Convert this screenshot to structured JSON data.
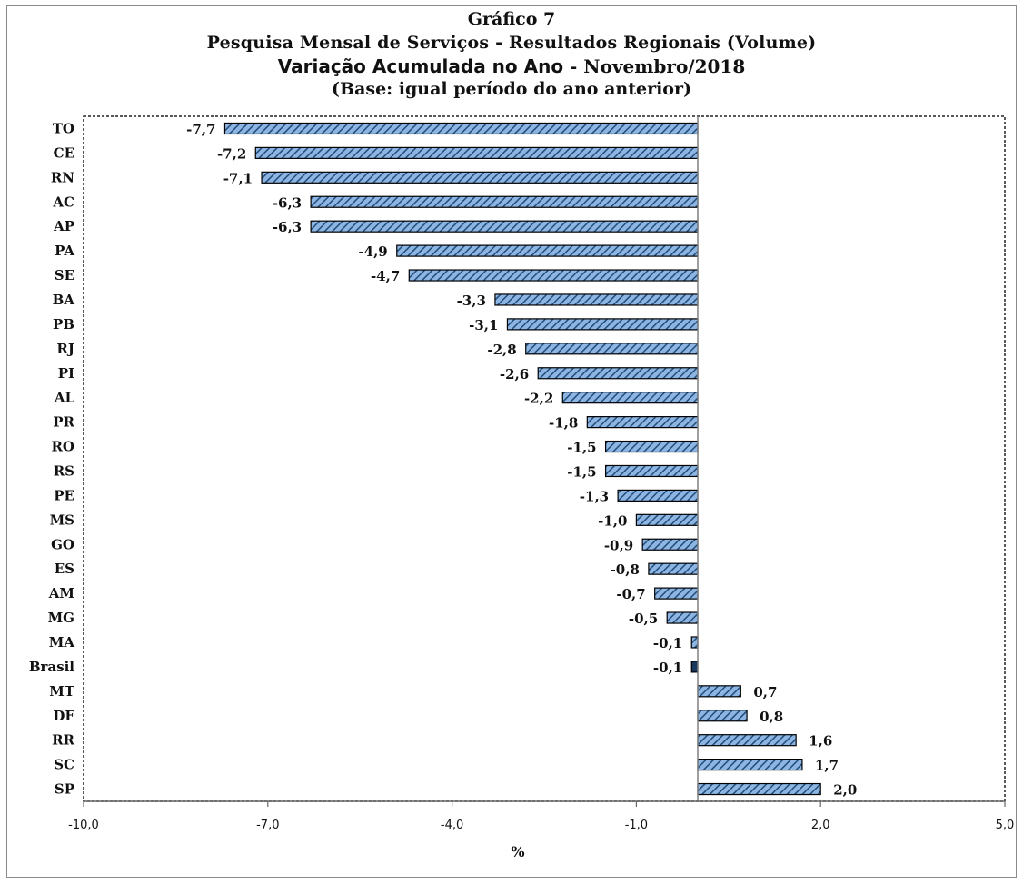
{
  "chart_data": {
    "type": "bar",
    "orientation": "horizontal",
    "title": "Gráfico 7",
    "subtitle_lines": [
      "Pesquisa  Mensal de Serviços - Resultados Regionais (Volume)",
      "Variação Acumulada no Ano - Novembro/2018",
      "(Base: igual período do ano anterior)"
    ],
    "subtitle_parts": {
      "line3_a": "Variação Acumulada no Ano",
      "line3_b": " - Novembro/2018"
    },
    "xlabel": "%",
    "xlim": [
      -10,
      5
    ],
    "xticks": [
      "-10,0",
      "-7,0",
      "-4,0",
      "-1,0",
      "2,0",
      "5,0"
    ],
    "xtick_values": [
      -10,
      -7,
      -4,
      -1,
      2,
      5
    ],
    "categories": [
      "TO",
      "CE",
      "RN",
      "AC",
      "AP",
      "PA",
      "SE",
      "BA",
      "PB",
      "RJ",
      "PI",
      "AL",
      "PR",
      "RO",
      "RS",
      "PE",
      "MS",
      "GO",
      "ES",
      "AM",
      "MG",
      "MA",
      "Brasil",
      "MT",
      "DF",
      "RR",
      "SC",
      "SP"
    ],
    "values": [
      -7.7,
      -7.2,
      -7.1,
      -6.3,
      -6.3,
      -4.9,
      -4.7,
      -3.3,
      -3.1,
      -2.8,
      -2.6,
      -2.2,
      -1.8,
      -1.5,
      -1.5,
      -1.3,
      -1.0,
      -0.9,
      -0.8,
      -0.7,
      -0.5,
      -0.1,
      -0.1,
      0.7,
      0.8,
      1.6,
      1.7,
      2.0
    ],
    "value_labels": [
      "-7,7",
      "-7,2",
      "-7,1",
      "-6,3",
      "-6,3",
      "-4,9",
      "-4,7",
      "-3,3",
      "-3,1",
      "-2,8",
      "-2,6",
      "-2,2",
      "-1,8",
      "-1,5",
      "-1,5",
      "-1,3",
      "-1,0",
      "-0,9",
      "-0,8",
      "-0,7",
      "-0,5",
      "-0,1",
      "-0,1",
      "0,7",
      "0,8",
      "1,6",
      "1,7",
      "2,0"
    ],
    "highlight_category": "Brasil",
    "colors": {
      "bar_fill": "#8db4e2",
      "hatch": "#1f4e79",
      "highlight_fill": "#17375e",
      "bar_edge": "#000000",
      "zero_line": "#808080"
    },
    "grid": false,
    "legend": "none"
  }
}
